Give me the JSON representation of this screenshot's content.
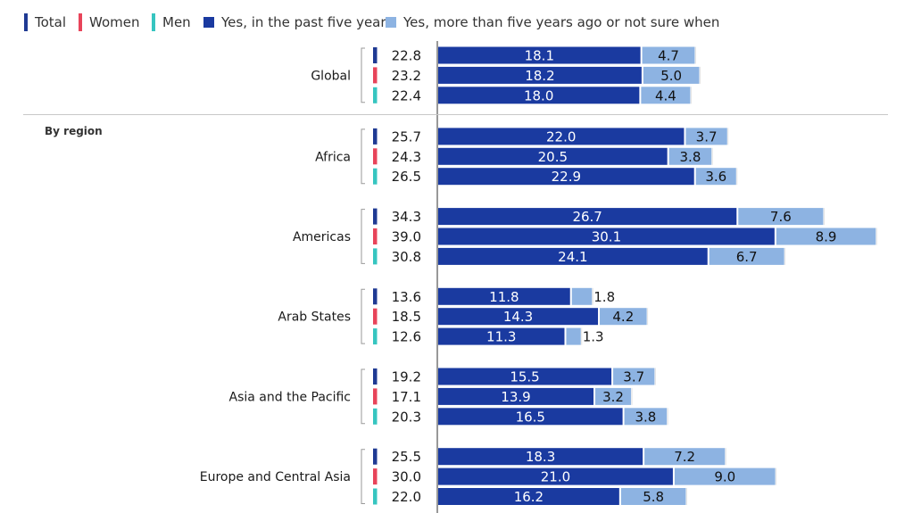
{
  "legend": {
    "total": "Total",
    "women": "Women",
    "men": "Men",
    "past5": "Yes, in the past five years",
    "older": "Yes, more than five years ago or not sure when"
  },
  "colors": {
    "total": "#1f3a93",
    "women": "#e8445a",
    "men": "#36c5c0",
    "past5": "#1a3aa0",
    "older": "#8db3e2"
  },
  "section_label": "By region",
  "chart_data": {
    "type": "bar",
    "orientation": "horizontal",
    "stacked": true,
    "series_names": [
      "Yes, in the past five years",
      "Yes, more than five years ago or not sure when"
    ],
    "groups": [
      {
        "name": "Global",
        "rows": [
          {
            "sex": "total",
            "sum": "22.8",
            "past5": 18.1,
            "older": 4.7
          },
          {
            "sex": "women",
            "sum": "23.2",
            "past5": 18.2,
            "older": 5.0
          },
          {
            "sex": "men",
            "sum": "22.4",
            "past5": 18.0,
            "older": 4.4
          }
        ]
      },
      {
        "name": "Africa",
        "rows": [
          {
            "sex": "total",
            "sum": "25.7",
            "past5": 22.0,
            "older": 3.7
          },
          {
            "sex": "women",
            "sum": "24.3",
            "past5": 20.5,
            "older": 3.8
          },
          {
            "sex": "men",
            "sum": "26.5",
            "past5": 22.9,
            "older": 3.6
          }
        ]
      },
      {
        "name": "Americas",
        "rows": [
          {
            "sex": "total",
            "sum": "34.3",
            "past5": 26.7,
            "older": 7.6
          },
          {
            "sex": "women",
            "sum": "39.0",
            "past5": 30.1,
            "older": 8.9
          },
          {
            "sex": "men",
            "sum": "30.8",
            "past5": 24.1,
            "older": 6.7
          }
        ]
      },
      {
        "name": "Arab States",
        "rows": [
          {
            "sex": "total",
            "sum": "13.6",
            "past5": 11.8,
            "older": 1.8
          },
          {
            "sex": "women",
            "sum": "18.5",
            "past5": 14.3,
            "older": 4.2
          },
          {
            "sex": "men",
            "sum": "12.6",
            "past5": 11.3,
            "older": 1.3
          }
        ]
      },
      {
        "name": "Asia and the Pacific",
        "rows": [
          {
            "sex": "total",
            "sum": "19.2",
            "past5": 15.5,
            "older": 3.7
          },
          {
            "sex": "women",
            "sum": "17.1",
            "past5": 13.9,
            "older": 3.2
          },
          {
            "sex": "men",
            "sum": "20.3",
            "past5": 16.5,
            "older": 3.8
          }
        ]
      },
      {
        "name": "Europe and Central Asia",
        "rows": [
          {
            "sex": "total",
            "sum": "25.5",
            "past5": 18.3,
            "older": 7.2
          },
          {
            "sex": "women",
            "sum": "30.0",
            "past5": 21.0,
            "older": 9.0
          },
          {
            "sex": "men",
            "sum": "22.0",
            "past5": 16.2,
            "older": 5.8
          }
        ]
      }
    ]
  }
}
